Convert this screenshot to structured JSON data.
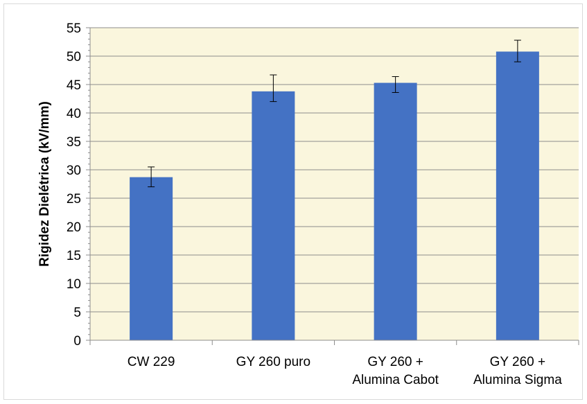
{
  "chart_data": {
    "type": "bar",
    "categories": [
      [
        "CW 229"
      ],
      [
        "GY 260 puro"
      ],
      [
        "GY 260 +",
        "Alumina Cabot"
      ],
      [
        "GY 260 +",
        "Alumina Sigma"
      ]
    ],
    "values": [
      28.7,
      43.8,
      45.3,
      50.8
    ],
    "error_low": [
      27.0,
      42.0,
      43.6,
      49.0
    ],
    "error_high": [
      30.5,
      46.7,
      46.4,
      52.8
    ],
    "ylabel": "Rigidez Dielétrica (kV/mm)",
    "xlabel": "",
    "ylim": [
      0,
      55
    ],
    "yticks": [
      0,
      5,
      10,
      15,
      20,
      25,
      30,
      35,
      40,
      45,
      50,
      55
    ],
    "grid": true,
    "colors": {
      "bar": "#4472C4",
      "plot_background": "#FAF6DD",
      "grid": "#8C8C8C",
      "axis": "#8C8C8C",
      "error_bar": "#000000"
    }
  }
}
